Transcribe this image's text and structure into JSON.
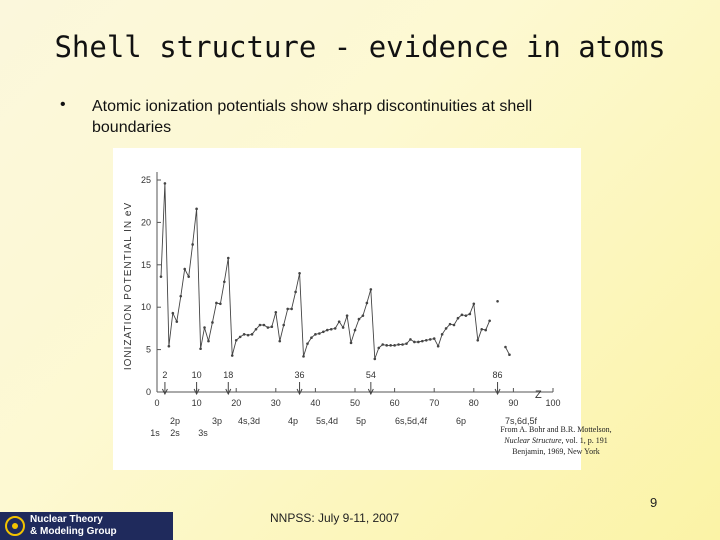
{
  "title": "Shell structure - evidence in atoms",
  "bullet": "Atomic ionization potentials show sharp discontinuities at shell boundaries",
  "citation": [
    "From A. Bohr and B.R. Mottelson,",
    "Nuclear Structure",
    ", vol. 1, p. 191",
    "Benjamin, 1969, New York"
  ],
  "page_number": "9",
  "footer": "NNPSS: July 9-11, 2007",
  "logo": [
    "Nuclear Theory",
    "& Modeling Group"
  ],
  "chart_data": {
    "type": "line",
    "y_label": "IONIZATION POTENTIAL IN eV",
    "x_label": "Z",
    "x": [
      1,
      2,
      3,
      4,
      5,
      6,
      7,
      8,
      9,
      10,
      11,
      12,
      13,
      14,
      15,
      16,
      17,
      18,
      19,
      20,
      21,
      22,
      23,
      24,
      25,
      26,
      27,
      28,
      29,
      30,
      31,
      32,
      33,
      34,
      35,
      36,
      37,
      38,
      39,
      40,
      41,
      42,
      43,
      44,
      45,
      46,
      47,
      48,
      49,
      50,
      51,
      52,
      53,
      54,
      55,
      56,
      57,
      58,
      59,
      60,
      61,
      62,
      63,
      64,
      65,
      66,
      67,
      68,
      69,
      70,
      71,
      72,
      73,
      74,
      75,
      76,
      77,
      78,
      79,
      80,
      81,
      82,
      83,
      84,
      85,
      86,
      87,
      88,
      89
    ],
    "series": [
      {
        "name": "Ionization potential",
        "color": "#444444",
        "values": [
          13.6,
          24.6,
          5.4,
          9.3,
          8.3,
          11.3,
          14.5,
          13.6,
          17.4,
          21.6,
          5.1,
          7.6,
          6.0,
          8.2,
          10.5,
          10.4,
          13.0,
          15.8,
          4.3,
          6.1,
          6.5,
          6.8,
          6.7,
          6.8,
          7.4,
          7.9,
          7.9,
          7.6,
          7.7,
          9.4,
          6.0,
          7.9,
          9.8,
          9.8,
          11.8,
          14.0,
          4.2,
          5.7,
          6.4,
          6.8,
          6.9,
          7.1,
          7.3,
          7.4,
          7.5,
          8.3,
          7.6,
          9.0,
          5.8,
          7.3,
          8.6,
          9.0,
          10.5,
          12.1,
          3.9,
          5.2,
          5.6,
          5.5,
          5.5,
          5.5,
          5.6,
          5.6,
          5.7,
          6.2,
          5.9,
          5.9,
          6.0,
          6.1,
          6.2,
          6.3,
          5.4,
          6.8,
          7.5,
          8.0,
          7.9,
          8.7,
          9.1,
          9.0,
          9.2,
          10.4,
          6.1,
          7.4,
          7.3,
          8.4,
          null,
          10.7,
          null,
          5.3,
          4.4
        ]
      }
    ],
    "xlim": [
      0,
      100
    ],
    "xticks": [
      0,
      10,
      20,
      30,
      40,
      50,
      60,
      70,
      80,
      90,
      100
    ],
    "ylim": [
      0,
      25
    ],
    "yticks": [
      0,
      5,
      10,
      15,
      20,
      25
    ],
    "magic_numbers": [
      2,
      10,
      18,
      36,
      54,
      86
    ],
    "shell_labels": [
      "2p",
      "3p",
      "4s,3d",
      "4p",
      "5s,4d",
      "5p",
      "6s,5d,4f",
      "6p",
      "7s,6d,5f"
    ],
    "core_labels": [
      "1s",
      "2s",
      "3s"
    ]
  }
}
